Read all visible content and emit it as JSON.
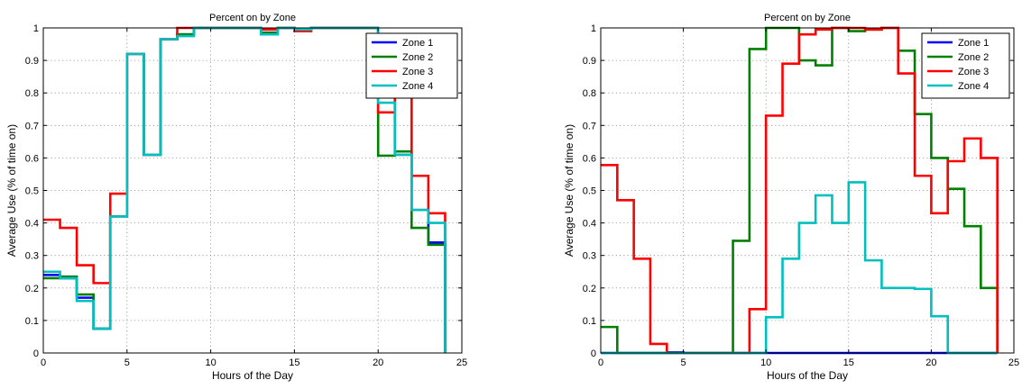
{
  "chart_data": [
    {
      "type": "line",
      "step": "post",
      "title": "Percent on by Zone",
      "xlabel": "Hours of the Day",
      "ylabel": "Average Use (% of time on)",
      "xlim": [
        0,
        25
      ],
      "ylim": [
        0,
        1
      ],
      "xticks": [
        0,
        5,
        10,
        15,
        20,
        25
      ],
      "yticks": [
        0,
        0.1,
        0.2,
        0.3,
        0.4,
        0.5,
        0.6,
        0.7,
        0.8,
        0.9,
        1
      ],
      "grid": true,
      "legend_position": "top-right",
      "x": [
        0,
        1,
        2,
        3,
        4,
        5,
        6,
        7,
        8,
        9,
        10,
        11,
        12,
        13,
        14,
        15,
        16,
        17,
        18,
        19,
        20,
        21,
        22,
        23,
        24
      ],
      "series": [
        {
          "name": "Zone 1",
          "color": "#0000ff",
          "values": [
            0.24,
            0.23,
            0.17,
            0.075,
            0.42,
            0.92,
            0.61,
            0.965,
            0.98,
            1.0,
            1.0,
            1.0,
            1.0,
            0.985,
            1.0,
            0.995,
            1.0,
            1.0,
            1.0,
            1.0,
            0.8,
            0.61,
            0.44,
            0.34,
            0
          ]
        },
        {
          "name": "Zone 2",
          "color": "#008000",
          "values": [
            0.23,
            0.235,
            0.18,
            0.075,
            0.42,
            0.92,
            0.61,
            0.965,
            0.98,
            1.0,
            1.0,
            1.0,
            1.0,
            0.985,
            1.0,
            0.995,
            1.0,
            1.0,
            1.0,
            1.0,
            0.607,
            0.62,
            0.385,
            0.333,
            0
          ]
        },
        {
          "name": "Zone 3",
          "color": "#ff0000",
          "values": [
            0.41,
            0.385,
            0.27,
            0.215,
            0.49,
            0.92,
            0.61,
            0.965,
            1.0,
            1.0,
            1.0,
            1.0,
            1.0,
            0.995,
            1.0,
            0.99,
            1.0,
            1.0,
            1.0,
            1.0,
            0.74,
            0.88,
            0.545,
            0.43,
            0
          ]
        },
        {
          "name": "Zone 4",
          "color": "#00bfbf",
          "values": [
            0.25,
            0.23,
            0.16,
            0.075,
            0.42,
            0.92,
            0.61,
            0.965,
            0.975,
            1.0,
            1.0,
            1.0,
            1.0,
            0.98,
            1.0,
            0.995,
            1.0,
            1.0,
            1.0,
            1.0,
            0.77,
            0.61,
            0.44,
            0.4,
            0
          ]
        }
      ]
    },
    {
      "type": "line",
      "step": "post",
      "title": "Percent on by Zone",
      "xlabel": "Hours of the Day",
      "ylabel": "Average Use (% of time on)",
      "xlim": [
        0,
        25
      ],
      "ylim": [
        0,
        1
      ],
      "xticks": [
        0,
        5,
        10,
        15,
        20,
        25
      ],
      "yticks": [
        0,
        0.1,
        0.2,
        0.3,
        0.4,
        0.5,
        0.6,
        0.7,
        0.8,
        0.9,
        1
      ],
      "grid": true,
      "legend_position": "top-right",
      "x": [
        0,
        1,
        2,
        3,
        4,
        5,
        6,
        7,
        8,
        9,
        10,
        11,
        12,
        13,
        14,
        15,
        16,
        17,
        18,
        19,
        20,
        21,
        22,
        23,
        24
      ],
      "series": [
        {
          "name": "Zone 1",
          "color": "#0000ff",
          "values": [
            0,
            0,
            0,
            0,
            0.002,
            0,
            0,
            0,
            0,
            0,
            0,
            0,
            0,
            0,
            0,
            0,
            0,
            0,
            0,
            0,
            0,
            0,
            0,
            0,
            0
          ]
        },
        {
          "name": "Zone 2",
          "color": "#008000",
          "values": [
            0.08,
            0,
            0,
            0,
            0,
            0,
            0,
            0,
            0.345,
            0.935,
            1.0,
            1.0,
            0.9,
            0.885,
            1.0,
            0.99,
            0.995,
            1.0,
            0.93,
            0.735,
            0.6,
            0.505,
            0.39,
            0.2,
            0
          ]
        },
        {
          "name": "Zone 3",
          "color": "#ff0000",
          "values": [
            0.578,
            0.47,
            0.29,
            0.028,
            0,
            0,
            0,
            0,
            0,
            0.135,
            0.73,
            0.89,
            0.98,
            0.995,
            1.0,
            1.0,
            0.995,
            1.0,
            0.86,
            0.545,
            0.43,
            0.59,
            0.66,
            0.6,
            0
          ]
        },
        {
          "name": "Zone 4",
          "color": "#00bfbf",
          "values": [
            0,
            0,
            0,
            0,
            0,
            0,
            0,
            0,
            0,
            0,
            0.11,
            0.29,
            0.4,
            0.485,
            0.4,
            0.525,
            0.285,
            0.2,
            0.2,
            0.197,
            0.113,
            0,
            0,
            0,
            0
          ]
        }
      ]
    }
  ]
}
